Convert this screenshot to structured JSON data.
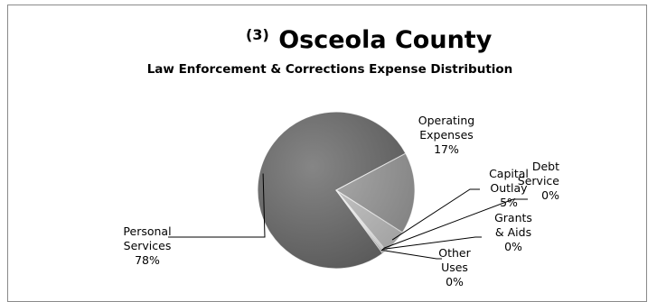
{
  "chart_data": {
    "type": "pie",
    "title_prefix": "(3)",
    "title": "Osceola County",
    "subtitle": "Law Enforcement & Corrections Expense Distribution",
    "slices": [
      {
        "lines": [
          "Personal",
          "Services"
        ],
        "percent_label": "78%",
        "value": 78,
        "color": "#6b6b6b"
      },
      {
        "lines": [
          "Operating",
          "Expenses"
        ],
        "percent_label": "17%",
        "value": 17,
        "color": "#9e9e9e"
      },
      {
        "lines": [
          "Capital",
          "Outlay"
        ],
        "percent_label": "5%",
        "value": 5,
        "color": "#c4c4c4"
      },
      {
        "lines": [
          "Debt",
          "Service"
        ],
        "percent_label": "0%",
        "value": 0.3,
        "color": "#d2d2d2"
      },
      {
        "lines": [
          "Grants",
          "& Aids"
        ],
        "percent_label": "0%",
        "value": 0.3,
        "color": "#b8b8b8"
      },
      {
        "lines": [
          "Other",
          "Uses"
        ],
        "percent_label": "0%",
        "value": 0.3,
        "color": "#8c8c8c"
      }
    ]
  }
}
